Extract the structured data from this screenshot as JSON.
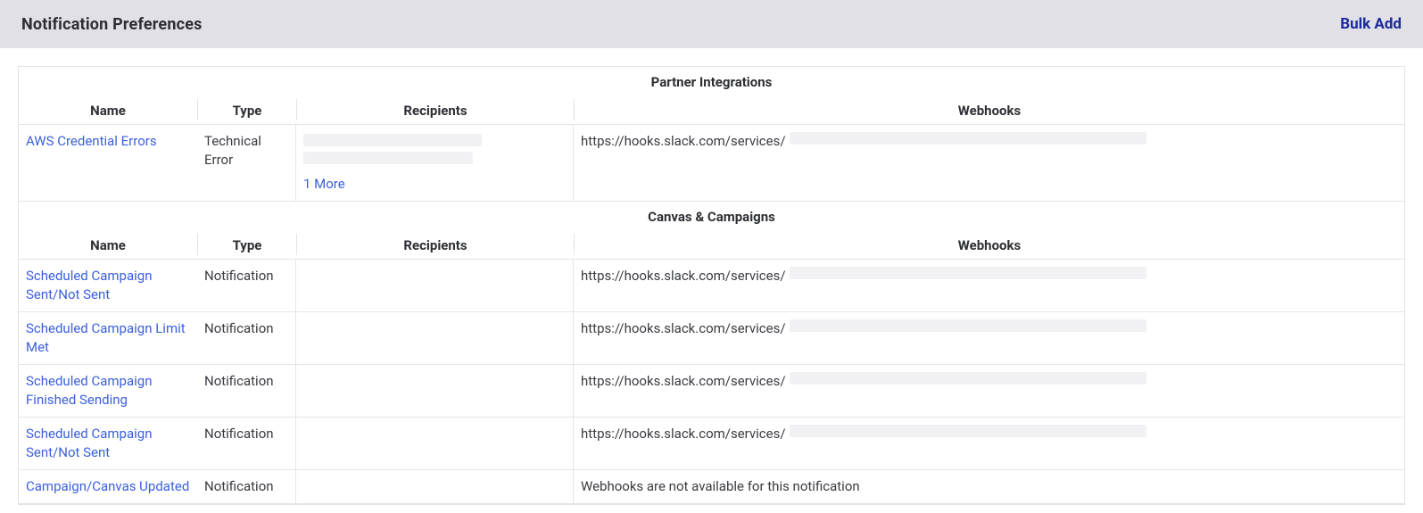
{
  "header": {
    "title": "Notification Preferences",
    "bulk_add": "Bulk Add"
  },
  "columns": {
    "name": "Name",
    "type": "Type",
    "recipients": "Recipients",
    "webhooks": "Webhooks"
  },
  "sections": [
    {
      "title": "Partner Integrations",
      "rows": [
        {
          "name": "AWS Credential Errors",
          "type": "Technical Error",
          "recipients_redacted_lines": [
            200,
            190
          ],
          "more_label": "1 More",
          "webhook_prefix": "https://hooks.slack.com/services/",
          "webhook_redact_width": 400,
          "webhook_message": null
        }
      ]
    },
    {
      "title": "Canvas & Campaigns",
      "rows": [
        {
          "name": "Scheduled Campaign Sent/Not Sent",
          "type": "Notification",
          "recipients_redacted_lines": [],
          "more_label": null,
          "webhook_prefix": "https://hooks.slack.com/services/",
          "webhook_redact_width": 400,
          "webhook_message": null
        },
        {
          "name": "Scheduled Campaign Limit Met",
          "type": "Notification",
          "recipients_redacted_lines": [],
          "more_label": null,
          "webhook_prefix": "https://hooks.slack.com/services/",
          "webhook_redact_width": 400,
          "webhook_message": null
        },
        {
          "name": "Scheduled Campaign Finished Sending",
          "type": "Notification",
          "recipients_redacted_lines": [],
          "more_label": null,
          "webhook_prefix": "https://hooks.slack.com/services/",
          "webhook_redact_width": 400,
          "webhook_message": null
        },
        {
          "name": "Scheduled Campaign Sent/Not Sent",
          "type": "Notification",
          "recipients_redacted_lines": [],
          "more_label": null,
          "webhook_prefix": "https://hooks.slack.com/services/",
          "webhook_redact_width": 400,
          "webhook_message": null
        },
        {
          "name": "Campaign/Canvas Updated",
          "type": "Notification",
          "recipients_redacted_lines": [],
          "more_label": null,
          "webhook_prefix": null,
          "webhook_redact_width": null,
          "webhook_message": "Webhooks are not available for this notification"
        }
      ]
    }
  ]
}
